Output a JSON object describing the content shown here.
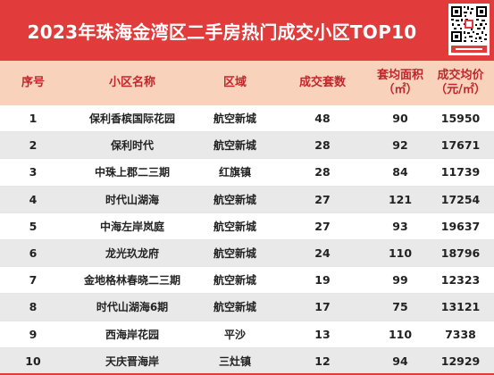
{
  "title": "2023年珠海金湾区二手房热门成交小区TOP10",
  "headers": [
    {
      "line1": "序号",
      "line2": ""
    },
    {
      "line1": "小区名称",
      "line2": ""
    },
    {
      "line1": "区域",
      "line2": ""
    },
    {
      "line1": "成交套数",
      "line2": ""
    },
    {
      "line1": "套均面积",
      "line2": "（㎡）"
    },
    {
      "line1": "成交均价",
      "line2": "（元/㎡）"
    }
  ],
  "rows": [
    {
      "rank": "1",
      "name": "保利香槟国际花园",
      "area": "航空新城",
      "deals": "48",
      "avg_size": "90",
      "avg_price": "15950"
    },
    {
      "rank": "2",
      "name": "保利时代",
      "area": "航空新城",
      "deals": "28",
      "avg_size": "92",
      "avg_price": "17671"
    },
    {
      "rank": "3",
      "name": "中珠上郡二三期",
      "area": "红旗镇",
      "deals": "28",
      "avg_size": "84",
      "avg_price": "11739"
    },
    {
      "rank": "4",
      "name": "时代山湖海",
      "area": "航空新城",
      "deals": "27",
      "avg_size": "121",
      "avg_price": "17254"
    },
    {
      "rank": "5",
      "name": "中海左岸岚庭",
      "area": "航空新城",
      "deals": "27",
      "avg_size": "93",
      "avg_price": "19637"
    },
    {
      "rank": "6",
      "name": "龙光玖龙府",
      "area": "航空新城",
      "deals": "24",
      "avg_size": "110",
      "avg_price": "18796"
    },
    {
      "rank": "7",
      "name": "金地格林春晓二三期",
      "area": "航空新城",
      "deals": "19",
      "avg_size": "99",
      "avg_price": "12323"
    },
    {
      "rank": "8",
      "name": "时代山湖海6期",
      "area": "航空新城",
      "deals": "17",
      "avg_size": "75",
      "avg_price": "13121"
    },
    {
      "rank": "9",
      "name": "西海岸花园",
      "area": "平沙",
      "deals": "13",
      "avg_size": "110",
      "avg_price": "7338"
    },
    {
      "rank": "10",
      "name": "天庆晋海岸",
      "area": "三灶镇",
      "deals": "12",
      "avg_size": "94",
      "avg_price": "12929"
    }
  ],
  "colors": {
    "title_bg": "#e23b3b",
    "header_bg": "#f8d2ba",
    "header_text": "#c0272d",
    "row_alt_bg": "#e9e9e9"
  },
  "icons": [
    "qr-code-icon"
  ]
}
